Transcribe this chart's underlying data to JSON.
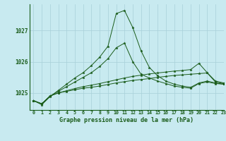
{
  "title": "Graphe pression niveau de la mer (hPa)",
  "background_color": "#c8eaf0",
  "grid_color": "#a8d0d8",
  "line_color": "#1a5c1a",
  "xlim": [
    -0.5,
    23
  ],
  "ylim": [
    1024.45,
    1027.85
  ],
  "yticks": [
    1025,
    1026,
    1027
  ],
  "xticks": [
    0,
    1,
    2,
    3,
    4,
    5,
    6,
    7,
    8,
    9,
    10,
    11,
    12,
    13,
    14,
    15,
    16,
    17,
    18,
    19,
    20,
    21,
    22,
    23
  ],
  "series": [
    [
      1024.75,
      1024.65,
      1024.9,
      1025.0,
      1025.05,
      1025.1,
      1025.15,
      1025.18,
      1025.22,
      1025.27,
      1025.32,
      1025.36,
      1025.4,
      1025.43,
      1025.46,
      1025.5,
      1025.53,
      1025.56,
      1025.58,
      1025.6,
      1025.62,
      1025.64,
      1025.35,
      1025.3
    ],
    [
      1024.75,
      1024.65,
      1024.9,
      1025.0,
      1025.07,
      1025.14,
      1025.2,
      1025.25,
      1025.3,
      1025.36,
      1025.42,
      1025.48,
      1025.53,
      1025.57,
      1025.61,
      1025.64,
      1025.67,
      1025.7,
      1025.72,
      1025.75,
      1025.95,
      1025.65,
      1025.38,
      1025.32
    ],
    [
      1024.75,
      1024.65,
      1024.9,
      1025.05,
      1025.2,
      1025.35,
      1025.5,
      1025.65,
      1025.85,
      1026.1,
      1026.45,
      1026.6,
      1026.0,
      1025.6,
      1025.48,
      1025.38,
      1025.3,
      1025.22,
      1025.18,
      1025.15,
      1025.3,
      1025.35,
      1025.3,
      1025.28
    ],
    [
      1024.75,
      1024.62,
      1024.88,
      1025.08,
      1025.28,
      1025.48,
      1025.65,
      1025.88,
      1026.15,
      1026.5,
      1027.55,
      1027.65,
      1027.1,
      1026.35,
      1025.82,
      1025.55,
      1025.38,
      1025.28,
      1025.22,
      1025.18,
      1025.32,
      1025.38,
      1025.32,
      1025.28
    ]
  ]
}
